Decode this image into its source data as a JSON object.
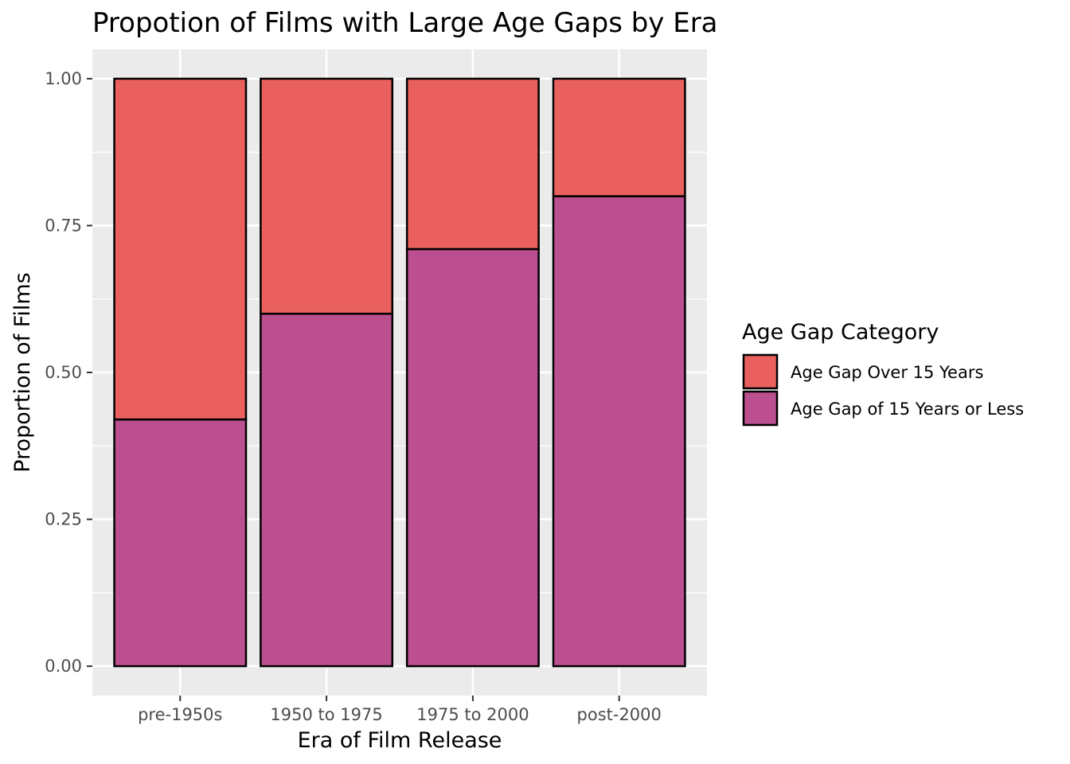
{
  "chart_data": {
    "type": "bar",
    "stacked": true,
    "title": "Propotion of Films with Large Age Gaps by Era",
    "xlabel": "Era of Film Release",
    "ylabel": "Proportion of Films",
    "categories": [
      "pre-1950s",
      "1950 to 1975",
      "1975 to 2000",
      "post-2000"
    ],
    "ylim": [
      -0.05,
      1.05
    ],
    "yticks": [
      0,
      0.25,
      0.5,
      0.75,
      1.0
    ],
    "ytick_labels": [
      "0.00",
      "0.25",
      "0.50",
      "0.75",
      "1.00"
    ],
    "grid": true,
    "series": [
      {
        "name": "Age Gap of 15 Years or Less",
        "color": "#BC4F8F",
        "values": [
          0.42,
          0.6,
          0.71,
          0.8
        ]
      },
      {
        "name": "Age Gap Over 15 Years",
        "color": "#E9605E",
        "values": [
          0.58,
          0.4,
          0.29,
          0.2
        ]
      }
    ],
    "legend": {
      "title": "Age Gap Category",
      "position": "right",
      "entries": [
        "Age Gap Over 15 Years",
        "Age Gap of 15 Years or Less"
      ]
    },
    "colors": {
      "panel_background": "#EBEBEB",
      "gridline": "#FFFFFF",
      "bar_outline": "#000000"
    }
  }
}
